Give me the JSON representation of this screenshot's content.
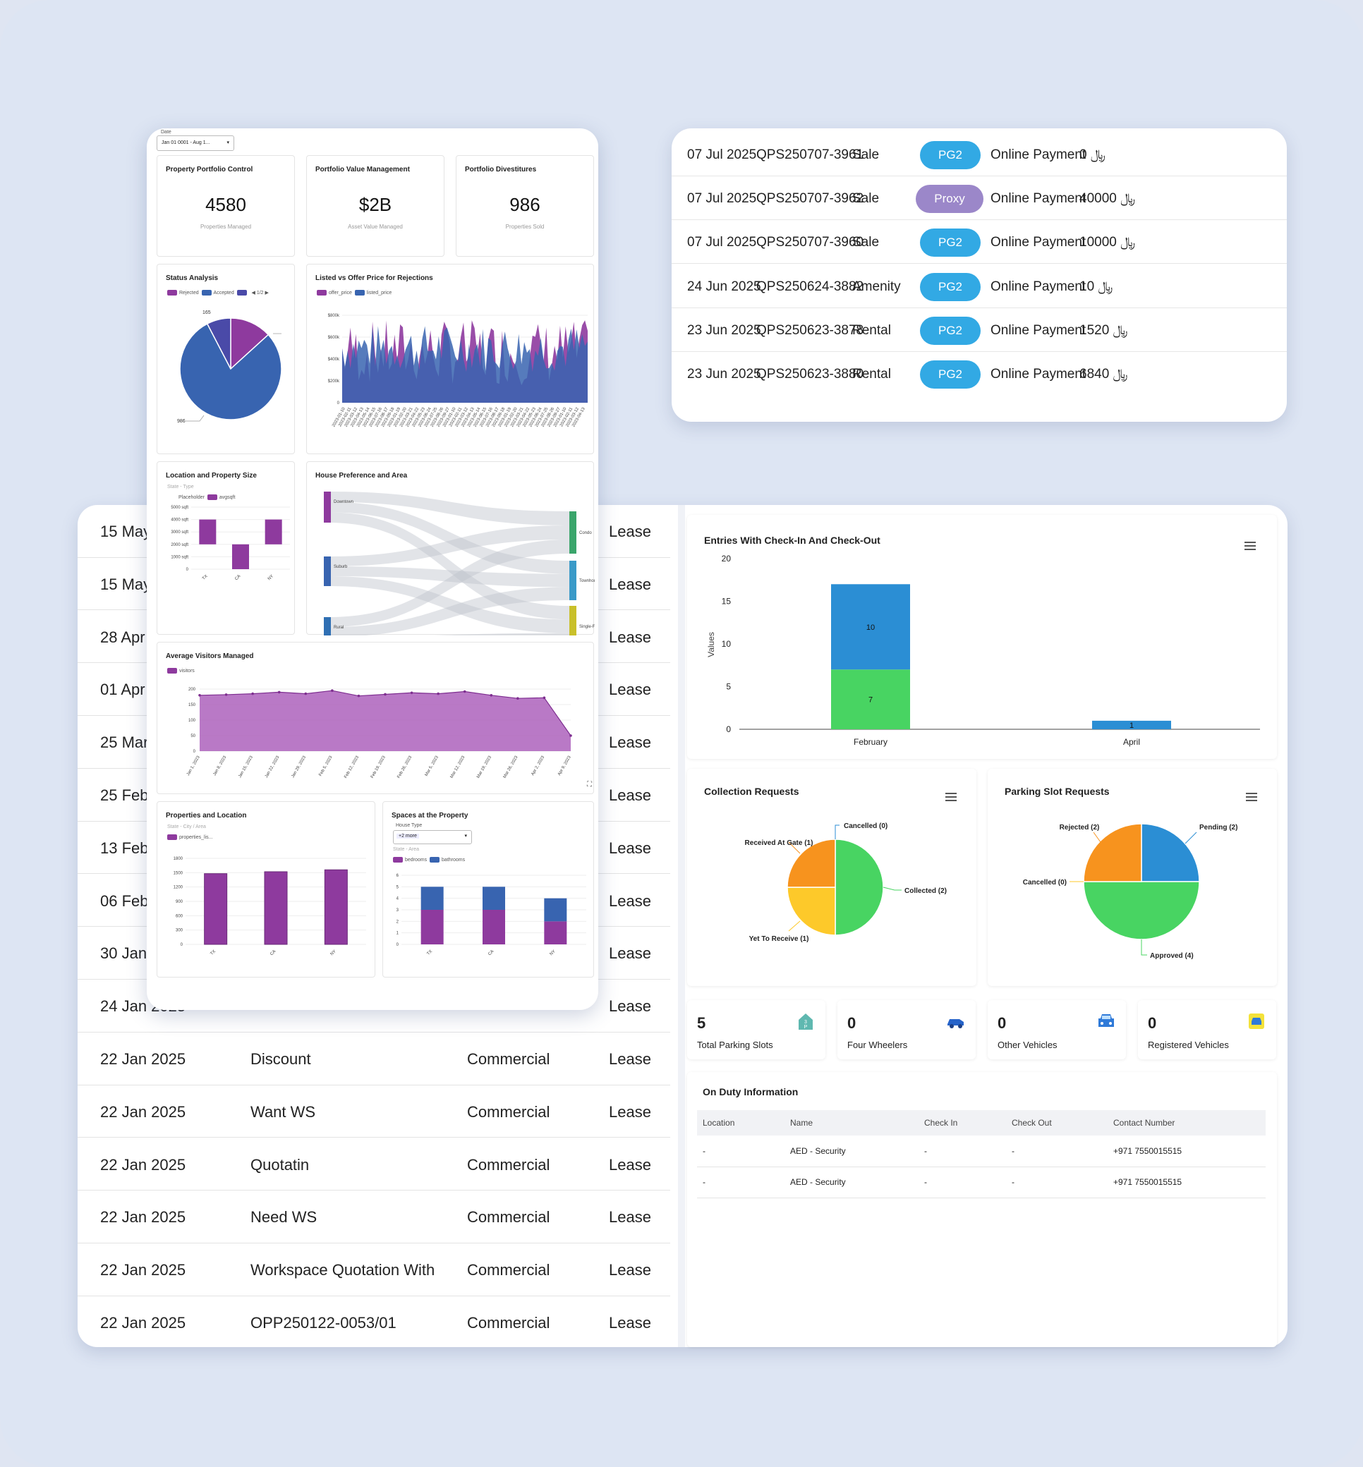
{
  "payments": {
    "rows": [
      {
        "date": "07 Jul 2025",
        "id": "QPS250707-3961",
        "type": "Sale",
        "badge": "PG2",
        "method": "Online Payment",
        "amount": "0 ﷼"
      },
      {
        "date": "07 Jul 2025",
        "id": "QPS250707-3962",
        "type": "Sale",
        "badge": "Proxy",
        "method": "Online Payment",
        "amount": "40000 ﷼"
      },
      {
        "date": "07 Jul 2025",
        "id": "QPS250707-3960",
        "type": "Sale",
        "badge": "PG2",
        "method": "Online Payment",
        "amount": "10000 ﷼"
      },
      {
        "date": "24 Jun 2025",
        "id": "QPS250624-3882",
        "type": "Amenity",
        "badge": "PG2",
        "method": "Online Payment",
        "amount": "10 ﷼"
      },
      {
        "date": "23 Jun 2025",
        "id": "QPS250623-3878",
        "type": "Rental",
        "badge": "PG2",
        "method": "Online Payment",
        "amount": "1520 ﷼"
      },
      {
        "date": "23 Jun 2025",
        "id": "QPS250623-3880",
        "type": "Rental",
        "badge": "PG2",
        "method": "Online Payment",
        "amount": "6840 ﷼"
      }
    ],
    "colors": {
      "pg2": "#32a9e4",
      "proxy": "#9b87c9"
    }
  },
  "leads": {
    "rows": [
      {
        "date": "15 May",
        "name": "",
        "category": "",
        "kind": "Lease"
      },
      {
        "date": "15 May",
        "name": "",
        "category": "",
        "kind": "Lease"
      },
      {
        "date": "28 Apr",
        "name": "",
        "category": "",
        "kind": "Lease"
      },
      {
        "date": "01 Apr",
        "name": "",
        "category": "",
        "kind": "Lease"
      },
      {
        "date": "25 Mar",
        "name": "",
        "category": "",
        "kind": "Lease"
      },
      {
        "date": "25 Feb",
        "name": "",
        "category": "",
        "kind": "Lease"
      },
      {
        "date": "13 Feb",
        "name": "",
        "category": "",
        "kind": "Lease"
      },
      {
        "date": "06 Feb",
        "name": "",
        "category": "",
        "kind": "Lease"
      },
      {
        "date": "30 Jan",
        "name": "",
        "category": "",
        "kind": "Lease"
      },
      {
        "date": "24 Jan 2025",
        "name": "",
        "category": "",
        "kind": "Lease"
      },
      {
        "date": "22 Jan 2025",
        "name": "Discount",
        "category": "Commercial",
        "kind": "Lease"
      },
      {
        "date": "22 Jan 2025",
        "name": "Want WS",
        "category": "Commercial",
        "kind": "Lease"
      },
      {
        "date": "22 Jan 2025",
        "name": "Quotatin",
        "category": "Commercial",
        "kind": "Lease"
      },
      {
        "date": "22 Jan 2025",
        "name": "Need WS",
        "category": "Commercial",
        "kind": "Lease"
      },
      {
        "date": "22 Jan 2025",
        "name": "Workspace Quotation With",
        "category": "Commercial",
        "kind": "Lease"
      },
      {
        "date": "22 Jan 2025",
        "name": "OPP250122-0053/01",
        "category": "Commercial",
        "kind": "Lease"
      }
    ]
  },
  "parking": {
    "entries_title": "Entries With Check-In And Check-Out",
    "entries_ylabel": "Values",
    "collection_title": "Collection Requests",
    "parking_title": "Parking Slot Requests",
    "stats": [
      {
        "value": "5",
        "label": "Total Parking Slots",
        "icon": "parking-building-icon"
      },
      {
        "value": "0",
        "label": "Four Wheelers",
        "icon": "car-side-icon"
      },
      {
        "value": "0",
        "label": "Other Vehicles",
        "icon": "car-front-icon"
      },
      {
        "value": "0",
        "label": "Registered Vehicles",
        "icon": "registered-car-icon"
      }
    ],
    "duty": {
      "title": "On Duty Information",
      "headers": [
        "Location",
        "Name",
        "Check In",
        "Check Out",
        "Contact Number"
      ],
      "rows": [
        [
          "-",
          "AED - Security",
          "-",
          "-",
          "+971 7550015515"
        ],
        [
          "-",
          "AED - Security",
          "-",
          "-",
          "+971 7550015515"
        ]
      ]
    }
  },
  "analytics": {
    "date_filter_label": "Date",
    "date_filter_value": "Jan 01 0001 - Aug 1...",
    "kpis": [
      {
        "title": "Property Portfolio Control",
        "value": "4580",
        "sub": "Properties Managed"
      },
      {
        "title": "Portfolio Value Management",
        "value": "$2B",
        "sub": "Asset Value Managed"
      },
      {
        "title": "Portfolio Divestitures",
        "value": "986",
        "sub": "Properties Sold"
      }
    ],
    "status_title": "Status Analysis",
    "status_legend": [
      "Rejected",
      "Accepted",
      "",
      "1/2"
    ],
    "rejections_title": "Listed vs Offer Price for Rejections",
    "rejections_legend": [
      "offer_price",
      "listed_price"
    ],
    "location_title": "Location and Property Size",
    "location_filter": "State - Type",
    "location_legend": [
      "Placeholder",
      "avgsqft"
    ],
    "sankey_title": "House Preference and Area",
    "sankey_left": [
      "Downtown",
      "Suburb",
      "Rural"
    ],
    "sankey_right": [
      "Condo",
      "Townhouse",
      "Single-Family ..."
    ],
    "visitors_title": "Average Visitors Managed",
    "visitors_legend": "visitors",
    "props_title": "Properties and Location",
    "props_filter": "State - City / Area",
    "props_legend": "properties_lis...",
    "spaces_title": "Spaces at the Property",
    "spaces_select_label": "House Type",
    "spaces_select_chip": "+2 more",
    "spaces_filter": "State - Area",
    "spaces_legend": [
      "bedrooms",
      "bathrooms"
    ]
  },
  "chart_data": [
    {
      "type": "bar",
      "title": "Entries With Check-In And Check-Out",
      "ylabel": "Values",
      "categories": [
        "February",
        "April"
      ],
      "series": [
        {
          "values": [
            7,
            0
          ],
          "color": "#48d462"
        },
        {
          "values": [
            10,
            1
          ],
          "color": "#2b8ed4"
        }
      ],
      "ylim": [
        0,
        20
      ],
      "yticks": [
        0,
        5,
        10,
        15,
        20
      ],
      "data_labels": [
        [
          "7",
          ""
        ],
        [
          "10",
          "1"
        ]
      ]
    },
    {
      "type": "pie",
      "title": "Collection Requests",
      "slices": [
        {
          "name": "Cancelled (0)",
          "value": 0,
          "color": "#2b8ed4"
        },
        {
          "name": "Collected (2)",
          "value": 2,
          "color": "#48d462"
        },
        {
          "name": "Yet To Receive (1)",
          "value": 1,
          "color": "#fdc92a"
        },
        {
          "name": "Received At Gate (1)",
          "value": 1,
          "color": "#f7931e"
        }
      ]
    },
    {
      "type": "pie",
      "title": "Parking Slot Requests",
      "slices": [
        {
          "name": "Pending (2)",
          "value": 2,
          "color": "#2b8ed4"
        },
        {
          "name": "Approved (4)",
          "value": 4,
          "color": "#48d462"
        },
        {
          "name": "Cancelled (0)",
          "value": 0,
          "color": "#fdc92a"
        },
        {
          "name": "Rejected (2)",
          "value": 2,
          "color": "#f7931e"
        }
      ]
    },
    {
      "type": "pie",
      "title": "Status Analysis",
      "slices": [
        {
          "name": "Rejected",
          "value": 165,
          "color": "#8e3a9e"
        },
        {
          "name": "Accepted",
          "value": 986,
          "color": "#3864b0"
        },
        {
          "name": "",
          "value": 95,
          "color": "#4a4aa8"
        }
      ],
      "labels": [
        "165",
        "986"
      ]
    },
    {
      "type": "area",
      "title": "Listed vs Offer Price for Rejections",
      "series": [
        {
          "name": "offer_price"
        },
        {
          "name": "listed_price"
        }
      ],
      "yticks": [
        "0",
        "$200k",
        "$400k",
        "$600k",
        "$800k"
      ],
      "ylim": [
        0,
        800000
      ]
    },
    {
      "type": "bar",
      "title": "Location and Property Size",
      "categories": [
        "TX",
        "CA",
        "NY"
      ],
      "series": [
        {
          "name": "avgsqft",
          "ranges": [
            [
              2000,
              4000
            ],
            [
              0,
              2000
            ],
            [
              2000,
              4000
            ]
          ]
        }
      ],
      "yticks": [
        "0",
        "1000 sqft",
        "2000 sqft",
        "3000 sqft",
        "4000 sqft",
        "5000 sqft"
      ],
      "ylim": [
        0,
        5000
      ]
    },
    {
      "type": "area",
      "title": "Average Visitors Managed",
      "x": [
        "Jan 1, 2023",
        "Jan 8, 2023",
        "Jan 15, 2023",
        "Jan 22, 2023",
        "Jan 29, 2023",
        "Feb 5, 2023",
        "Feb 12, 2023",
        "Feb 19, 2023",
        "Feb 26, 2023",
        "Mar 5, 2023",
        "Mar 12, 2023",
        "Mar 19, 2023",
        "Mar 26, 2023",
        "Apr 2, 2023",
        "Apr 9, 2023"
      ],
      "series": [
        {
          "name": "visitors",
          "values": [
            180,
            182,
            185,
            190,
            185,
            195,
            178,
            183,
            188,
            185,
            192,
            180,
            170,
            172,
            50
          ]
        }
      ],
      "ylim": [
        0,
        200
      ],
      "yticks": [
        0,
        50,
        100,
        150,
        200
      ]
    },
    {
      "type": "bar",
      "title": "Properties and Location",
      "categories": [
        "TX",
        "CA",
        "NY"
      ],
      "series": [
        {
          "name": "properties_lis...",
          "values": [
            1480,
            1520,
            1560
          ]
        }
      ],
      "ylim": [
        0,
        1800
      ],
      "yticks": [
        0,
        300,
        600,
        900,
        1200,
        1500,
        1800
      ]
    },
    {
      "type": "bar",
      "title": "Spaces at the Property",
      "categories": [
        "TX",
        "CA",
        "NY"
      ],
      "series": [
        {
          "name": "bedrooms",
          "values": [
            3,
            3,
            2
          ]
        },
        {
          "name": "bathrooms",
          "values": [
            2,
            2,
            2
          ]
        }
      ],
      "ylim": [
        0,
        6
      ],
      "yticks": [
        0,
        1,
        2,
        3,
        4,
        5,
        6
      ]
    }
  ]
}
